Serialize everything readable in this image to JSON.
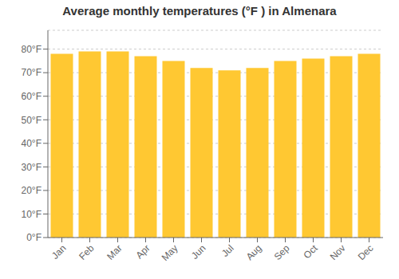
{
  "chart_data": {
    "type": "bar",
    "title": "Average monthly temperatures (°F ) in Almenara",
    "categories": [
      "Jan",
      "Feb",
      "Mar",
      "Apr",
      "May",
      "Jun",
      "Jul",
      "Aug",
      "Sep",
      "Oct",
      "Nov",
      "Dec"
    ],
    "values": [
      78,
      79,
      79,
      77,
      75,
      72,
      71,
      72,
      75,
      76,
      77,
      78
    ],
    "color": "#FFC832",
    "ylim": [
      0,
      88
    ],
    "yticks": [
      {
        "value": 0,
        "label": "0°F"
      },
      {
        "value": 10,
        "label": "10°F"
      },
      {
        "value": 20,
        "label": "20°F"
      },
      {
        "value": 30,
        "label": "30°F"
      },
      {
        "value": 40,
        "label": "40°F"
      },
      {
        "value": 50,
        "label": "50°F"
      },
      {
        "value": 60,
        "label": "60°F"
      },
      {
        "value": 70,
        "label": "70°F"
      },
      {
        "value": 80,
        "label": "80°F"
      }
    ],
    "grid": true
  }
}
